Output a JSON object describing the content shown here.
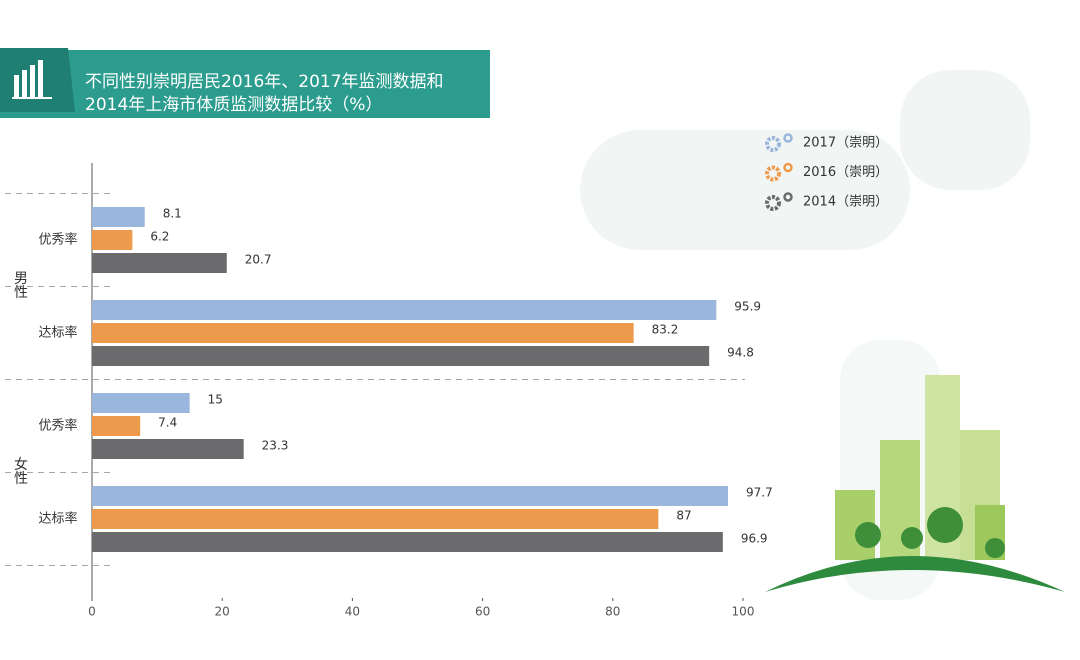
{
  "chart_data": {
    "type": "bar",
    "orientation": "horizontal",
    "title": [
      "不同性别崇明居民2016年、2017年监测数据和",
      "2014年上海市体质监测数据比较（%）"
    ],
    "groups": [
      "男性",
      "女性"
    ],
    "categories": [
      "优秀率",
      "达标率",
      "优秀率",
      "达标率"
    ],
    "series": [
      {
        "name": "2017（崇明）",
        "color": "#9bb6dc",
        "values": [
          8.1,
          95.9,
          15,
          97.7
        ]
      },
      {
        "name": "2016（崇明）",
        "color": "#ee9a4c",
        "values": [
          6.2,
          83.2,
          7.4,
          87
        ]
      },
      {
        "name": "2014（崇明）",
        "color": "#6b6b6d",
        "values": [
          20.7,
          94.8,
          23.3,
          96.9
        ]
      }
    ],
    "xlim": [
      0,
      100
    ],
    "xticks": [
      0,
      20,
      40,
      60,
      80,
      100
    ],
    "grid": false
  }
}
